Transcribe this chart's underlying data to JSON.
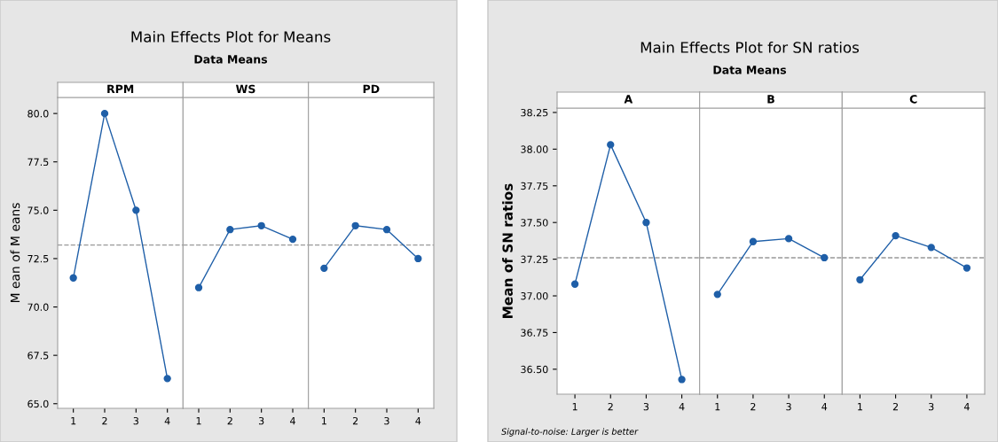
{
  "chart_data": [
    {
      "type": "line",
      "title": "RPM",
      "annotations": [
        "Main Effects Plot for Means",
        "Data Means"
      ],
      "ylabel": "M ean of M eans",
      "categories": [
        "1",
        "2",
        "3",
        "4"
      ],
      "series": [
        {
          "color": "#1f5fa8",
          "values": [
            71.5,
            80.0,
            75.0,
            66.3
          ]
        }
      ],
      "ylim": [
        64.76,
        80.83
      ],
      "yticks": [
        {
          "value": 65,
          "label": "65.0"
        },
        {
          "value": 67.5,
          "label": "67.5"
        },
        {
          "value": 70,
          "label": "70.0"
        },
        {
          "value": 72.5,
          "label": "72.5"
        },
        {
          "value": 75,
          "label": "75.0"
        },
        {
          "value": 77.5,
          "label": "77.5"
        },
        {
          "value": 80,
          "label": "80.0"
        }
      ],
      "ref_lines": [
        {
          "axis": "y",
          "value": 73.2,
          "color": "#999999",
          "line_style": "dashed"
        }
      ],
      "marker": "circle",
      "line_style": "solid",
      "grid": false
    },
    {
      "type": "line",
      "title": "WS",
      "categories": [
        "1",
        "2",
        "3",
        "4"
      ],
      "series": [
        {
          "color": "#1f5fa8",
          "values": [
            71.0,
            74.0,
            74.2,
            73.5
          ]
        }
      ],
      "ylim": [
        64.76,
        80.83
      ],
      "tick_labels": "x",
      "ref_lines": [
        {
          "axis": "y",
          "value": 73.2,
          "color": "#999999",
          "line_style": "dashed"
        }
      ],
      "marker": "circle",
      "line_style": "solid",
      "grid": false
    },
    {
      "type": "line",
      "title": "PD",
      "categories": [
        "1",
        "2",
        "3",
        "4"
      ],
      "series": [
        {
          "color": "#1f5fa8",
          "values": [
            72.0,
            74.2,
            74.0,
            72.5
          ]
        }
      ],
      "ylim": [
        64.76,
        80.83
      ],
      "tick_labels": "x",
      "ref_lines": [
        {
          "axis": "y",
          "value": 73.2,
          "color": "#999999",
          "line_style": "dashed"
        }
      ],
      "marker": "circle",
      "line_style": "solid",
      "grid": false
    },
    {
      "type": "line",
      "title": "A",
      "annotations": [
        "Main Effects Plot for SN ratios",
        "Data Means",
        "Signal-to-noise: Larger is better"
      ],
      "ylabel": "Mean of SN ratios",
      "categories": [
        "1",
        "2",
        "3",
        "4"
      ],
      "series": [
        {
          "color": "#1f5fa8",
          "values": [
            37.08,
            38.03,
            37.5,
            36.43
          ]
        }
      ],
      "ylim": [
        36.33,
        38.28
      ],
      "yticks": [
        {
          "value": 36.5,
          "label": "36.50"
        },
        {
          "value": 36.75,
          "label": "36.75"
        },
        {
          "value": 37,
          "label": "37.00"
        },
        {
          "value": 37.25,
          "label": "37.25"
        },
        {
          "value": 37.5,
          "label": "37.50"
        },
        {
          "value": 37.75,
          "label": "37.75"
        },
        {
          "value": 38,
          "label": "38.00"
        },
        {
          "value": 38.25,
          "label": "38.25"
        }
      ],
      "ref_lines": [
        {
          "axis": "y",
          "value": 37.26,
          "color": "#999999",
          "line_style": "dashed"
        }
      ],
      "marker": "circle",
      "line_style": "solid",
      "grid": false
    },
    {
      "type": "line",
      "title": "B",
      "categories": [
        "1",
        "2",
        "3",
        "4"
      ],
      "series": [
        {
          "color": "#1f5fa8",
          "values": [
            37.01,
            37.37,
            37.39,
            37.26
          ]
        }
      ],
      "ylim": [
        36.33,
        38.28
      ],
      "tick_labels": "x",
      "ref_lines": [
        {
          "axis": "y",
          "value": 37.26,
          "color": "#999999",
          "line_style": "dashed"
        }
      ],
      "marker": "circle",
      "line_style": "solid",
      "grid": false
    },
    {
      "type": "line",
      "title": "C",
      "categories": [
        "1",
        "2",
        "3",
        "4"
      ],
      "series": [
        {
          "color": "#1f5fa8",
          "values": [
            37.11,
            37.41,
            37.33,
            37.19
          ]
        }
      ],
      "ylim": [
        36.33,
        38.28
      ],
      "tick_labels": "x",
      "ref_lines": [
        {
          "axis": "y",
          "value": 37.26,
          "color": "#999999",
          "line_style": "dashed"
        }
      ],
      "marker": "circle",
      "line_style": "solid",
      "grid": false
    }
  ]
}
